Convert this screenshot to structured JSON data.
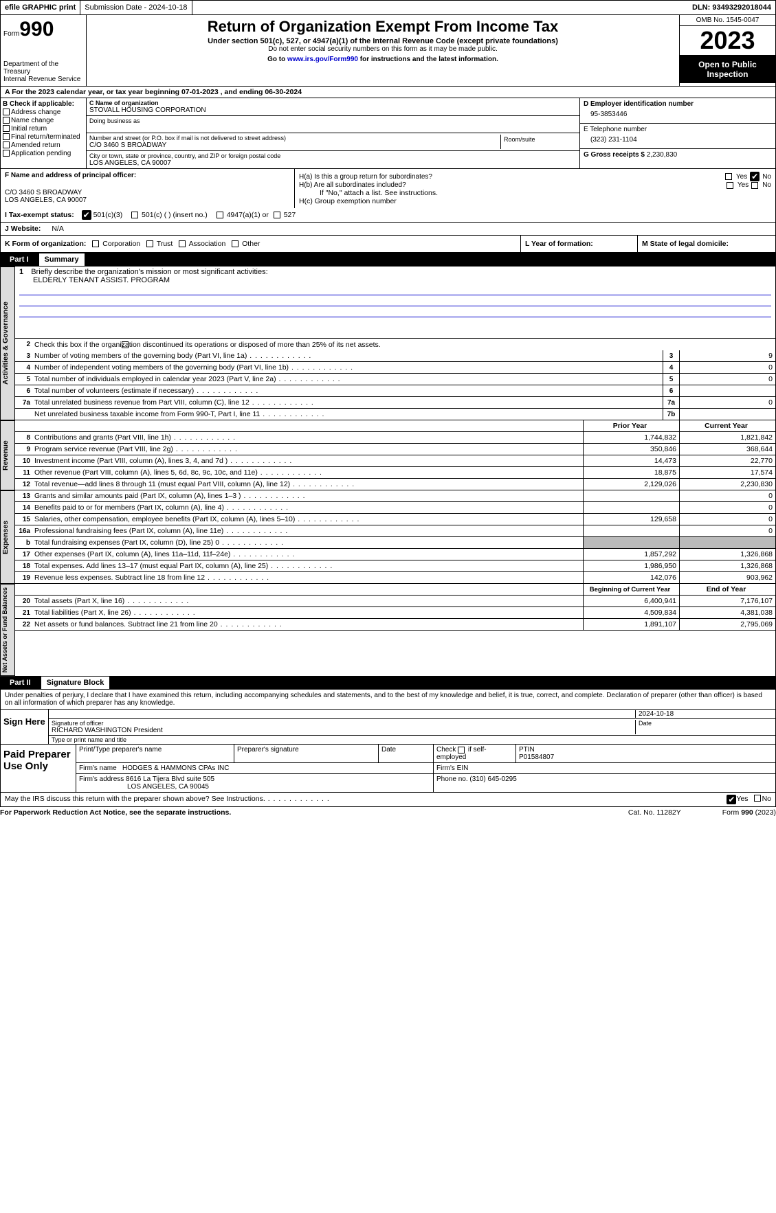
{
  "top": {
    "efile": "efile GRAPHIC print",
    "submission": "Submission Date - 2024-10-18",
    "dln": "DLN: 93493292018044"
  },
  "header": {
    "form_prefix": "Form",
    "form_num": "990",
    "dept": "Department of the Treasury\nInternal Revenue Service",
    "title": "Return of Organization Exempt From Income Tax",
    "sub1": "Under section 501(c), 527, or 4947(a)(1) of the Internal Revenue Code (except private foundations)",
    "sub2": "Do not enter social security numbers on this form as it may be made public.",
    "sub3_pre": "Go to ",
    "sub3_link": "www.irs.gov/Form990",
    "sub3_post": " for instructions and the latest information.",
    "omb": "OMB No. 1545-0047",
    "year": "2023",
    "open": "Open to Public Inspection"
  },
  "section_a": "A   For the 2023 calendar year, or tax year beginning 07-01-2023    , and ending 06-30-2024",
  "box_b": {
    "label": "B Check if applicable:",
    "opts": [
      "Address change",
      "Name change",
      "Initial return",
      "Final return/terminated",
      "Amended return",
      "Application pending"
    ]
  },
  "box_c": {
    "name_label": "C Name of organization",
    "name": "STOVALL HOUSING CORPORATION",
    "dba_label": "Doing business as",
    "addr_label": "Number and street (or P.O. box if mail is not delivered to street address)",
    "room_label": "Room/suite",
    "addr": "C/O 3460 S BROADWAY",
    "city_label": "City or town, state or province, country, and ZIP or foreign postal code",
    "city": "LOS ANGELES, CA  90007"
  },
  "box_d": {
    "label": "D Employer identification number",
    "val": "95-3853446"
  },
  "box_e": {
    "label": "E Telephone number",
    "val": "(323) 231-1104"
  },
  "box_g": {
    "label": "G Gross receipts $",
    "val": "2,230,830"
  },
  "box_f": {
    "label": "F  Name and address of principal officer:",
    "line1": "C/O 3460 S BROADWAY",
    "line2": "LOS ANGELES, CA  90007"
  },
  "box_h": {
    "a": "H(a)  Is this a group return for subordinates?",
    "b": "H(b)  Are all subordinates included?",
    "b_note": "If \"No,\" attach a list. See instructions.",
    "c": "H(c)  Group exemption number"
  },
  "tax_exempt": {
    "label": "I   Tax-exempt status:",
    "o1": "501(c)(3)",
    "o2": "501(c) (  ) (insert no.)",
    "o3": "4947(a)(1) or",
    "o4": "527"
  },
  "website": {
    "label": "J   Website:",
    "val": "N/A"
  },
  "box_k": {
    "label": "K Form of organization:",
    "opts": [
      "Corporation",
      "Trust",
      "Association",
      "Other"
    ]
  },
  "box_l": "L Year of formation:",
  "box_m": "M State of legal domicile:",
  "part1": {
    "num": "Part I",
    "title": "Summary"
  },
  "part2": {
    "num": "Part II",
    "title": "Signature Block"
  },
  "tabs": {
    "gov": "Activities & Governance",
    "rev": "Revenue",
    "exp": "Expenses",
    "net": "Net Assets or Fund Balances"
  },
  "summary": {
    "mission_label": "Briefly describe the organization's mission or most significant activities:",
    "mission": "ELDERLY TENANT ASSIST. PROGRAM",
    "line2": "Check this box        if the organization discontinued its operations or disposed of more than 25% of its net assets.",
    "rows_gov": [
      {
        "n": "3",
        "d": "Number of voting members of the governing body (Part VI, line 1a)",
        "box": "3",
        "v": "9"
      },
      {
        "n": "4",
        "d": "Number of independent voting members of the governing body (Part VI, line 1b)",
        "box": "4",
        "v": "0"
      },
      {
        "n": "5",
        "d": "Total number of individuals employed in calendar year 2023 (Part V, line 2a)",
        "box": "5",
        "v": "0"
      },
      {
        "n": "6",
        "d": "Total number of volunteers (estimate if necessary)",
        "box": "6",
        "v": ""
      },
      {
        "n": "7a",
        "d": "Total unrelated business revenue from Part VIII, column (C), line 12",
        "box": "7a",
        "v": "0"
      },
      {
        "n": "",
        "d": "Net unrelated business taxable income from Form 990-T, Part I, line 11",
        "box": "7b",
        "v": ""
      }
    ],
    "col_prior": "Prior Year",
    "col_curr": "Current Year",
    "rows_rev": [
      {
        "n": "8",
        "d": "Contributions and grants (Part VIII, line 1h)",
        "p": "1,744,832",
        "c": "1,821,842"
      },
      {
        "n": "9",
        "d": "Program service revenue (Part VIII, line 2g)",
        "p": "350,846",
        "c": "368,644"
      },
      {
        "n": "10",
        "d": "Investment income (Part VIII, column (A), lines 3, 4, and 7d )",
        "p": "14,473",
        "c": "22,770"
      },
      {
        "n": "11",
        "d": "Other revenue (Part VIII, column (A), lines 5, 6d, 8c, 9c, 10c, and 11e)",
        "p": "18,875",
        "c": "17,574"
      },
      {
        "n": "12",
        "d": "Total revenue—add lines 8 through 11 (must equal Part VIII, column (A), line 12)",
        "p": "2,129,026",
        "c": "2,230,830"
      }
    ],
    "rows_exp": [
      {
        "n": "13",
        "d": "Grants and similar amounts paid (Part IX, column (A), lines 1–3 )",
        "p": "",
        "c": "0"
      },
      {
        "n": "14",
        "d": "Benefits paid to or for members (Part IX, column (A), line 4)",
        "p": "",
        "c": "0"
      },
      {
        "n": "15",
        "d": "Salaries, other compensation, employee benefits (Part IX, column (A), lines 5–10)",
        "p": "129,658",
        "c": "0"
      },
      {
        "n": "16a",
        "d": "Professional fundraising fees (Part IX, column (A), line 11e)",
        "p": "",
        "c": "0"
      },
      {
        "n": "b",
        "d": "Total fundraising expenses (Part IX, column (D), line 25) 0",
        "p": "grey",
        "c": "grey"
      },
      {
        "n": "17",
        "d": "Other expenses (Part IX, column (A), lines 11a–11d, 11f–24e)",
        "p": "1,857,292",
        "c": "1,326,868"
      },
      {
        "n": "18",
        "d": "Total expenses. Add lines 13–17 (must equal Part IX, column (A), line 25)",
        "p": "1,986,950",
        "c": "1,326,868"
      },
      {
        "n": "19",
        "d": "Revenue less expenses. Subtract line 18 from line 12",
        "p": "142,076",
        "c": "903,962"
      }
    ],
    "col_beg": "Beginning of Current Year",
    "col_end": "End of Year",
    "rows_net": [
      {
        "n": "20",
        "d": "Total assets (Part X, line 16)",
        "p": "6,400,941",
        "c": "7,176,107"
      },
      {
        "n": "21",
        "d": "Total liabilities (Part X, line 26)",
        "p": "4,509,834",
        "c": "4,381,038"
      },
      {
        "n": "22",
        "d": "Net assets or fund balances. Subtract line 21 from line 20",
        "p": "1,891,107",
        "c": "2,795,069"
      }
    ]
  },
  "declaration": "Under penalties of perjury, I declare that I have examined this return, including accompanying schedules and statements, and to the best of my knowledge and belief, it is true, correct, and complete. Declaration of preparer (other than officer) is based on all information of which preparer has any knowledge.",
  "sign": {
    "left": "Sign Here",
    "sig_label": "Signature of officer",
    "officer": "RICHARD WASHINGTON  President",
    "name_label": "Type or print name and title",
    "date_label": "Date",
    "date": "2024-10-18"
  },
  "paid": {
    "left": "Paid Preparer Use Only",
    "h1": "Print/Type preparer's name",
    "h2": "Preparer's signature",
    "h3": "Date",
    "h4": "Check         if self-employed",
    "h5": "PTIN",
    "ptin": "P01584807",
    "firm_label": "Firm's name",
    "firm": "HODGES & HAMMONS CPAs INC",
    "ein_label": "Firm's EIN",
    "addr_label": "Firm's address",
    "addr1": "8616 La Tijera Blvd suite 505",
    "addr2": "LOS ANGELES, CA  90045",
    "phone_label": "Phone no.",
    "phone": "(310) 645-0295"
  },
  "discuss": "May the IRS discuss this return with the preparer shown above? See Instructions.",
  "yes": "Yes",
  "no": "No",
  "footer": {
    "pra": "For Paperwork Reduction Act Notice, see the separate instructions.",
    "cat": "Cat. No. 11282Y",
    "form": "Form 990 (2023)"
  }
}
